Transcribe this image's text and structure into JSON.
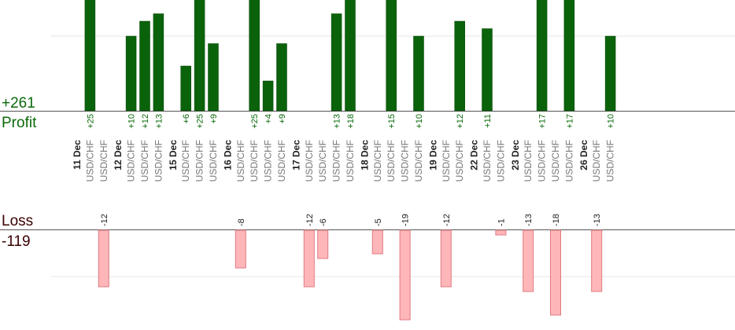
{
  "summary": {
    "profit_total": "+261",
    "profit_label": "Profit",
    "loss_label": "Loss",
    "loss_total": "-119"
  },
  "colors": {
    "profit_bar": "#0a630a",
    "profit_bar_edge": "#034003",
    "profit_text": "#0a6a0a",
    "loss_bar": "#ffb6b9",
    "loss_bar_edge": "#e07a80",
    "loss_text": "#3a0000",
    "baseline": "#555555",
    "gridline": "#e4e4e4"
  },
  "chart_data": {
    "type": "bar",
    "pair": "USD/CHF",
    "scale": {
      "gridline_values": [
        10,
        -10
      ]
    },
    "days": [
      {
        "label": "11 Dec",
        "trades": [
          25,
          -12
        ]
      },
      {
        "label": "12 Dec",
        "trades": [
          10,
          12,
          13
        ]
      },
      {
        "label": "15 Dec",
        "trades": [
          6,
          25,
          9
        ]
      },
      {
        "label": "16 Dec",
        "trades": [
          -8,
          25,
          4,
          9
        ]
      },
      {
        "label": "17 Dec",
        "trades": [
          -12,
          -6,
          13,
          18
        ]
      },
      {
        "label": "18 Dec",
        "trades": [
          -5,
          15,
          -19,
          10
        ]
      },
      {
        "label": "19 Dec",
        "trades": [
          -12,
          12
        ]
      },
      {
        "label": "22 Dec",
        "trades": [
          11,
          -1
        ]
      },
      {
        "label": "23 Dec",
        "trades": [
          -13,
          17,
          -18,
          17
        ]
      },
      {
        "label": "26 Dec",
        "trades": [
          -13,
          10
        ]
      }
    ]
  }
}
